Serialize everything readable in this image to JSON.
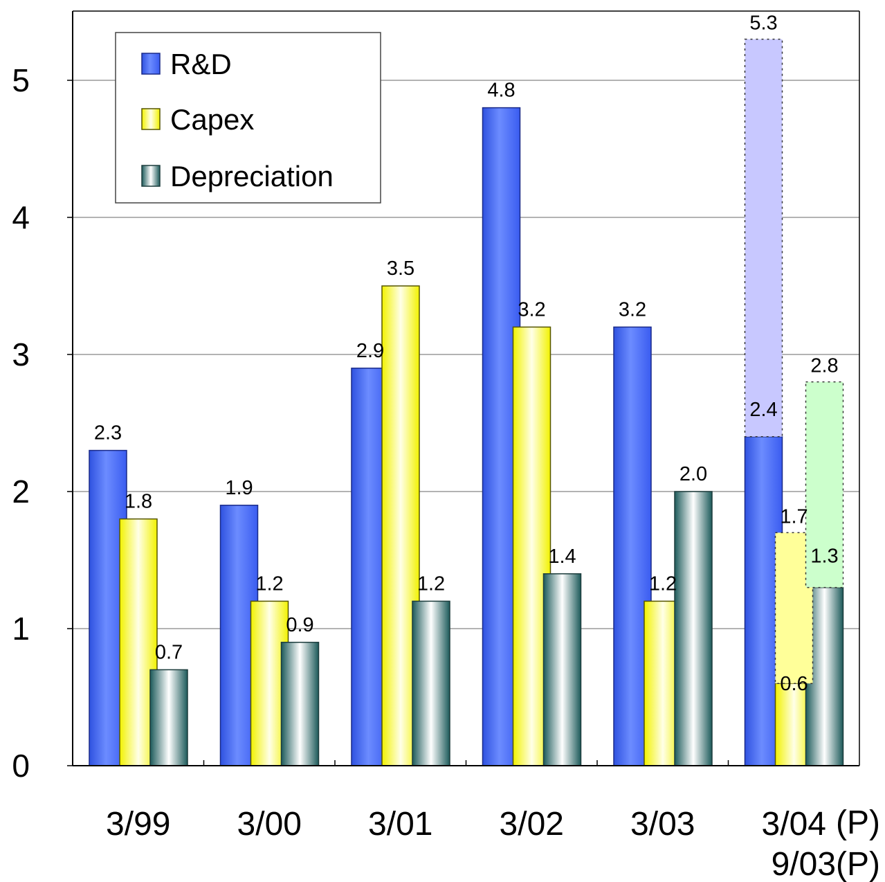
{
  "chart_data": {
    "type": "bar",
    "categories": [
      "3/99",
      "3/00",
      "3/01",
      "3/02",
      "3/03",
      "3/04"
    ],
    "category_suffix": [
      "",
      "",
      "",
      "",
      "",
      "(P)"
    ],
    "category_second_line": [
      "",
      "",
      "",
      "",
      "",
      "9/03(P)"
    ],
    "ylim": [
      0,
      5.5
    ],
    "yticks": [
      "0",
      "1",
      "2",
      "3",
      "4",
      "5"
    ],
    "grid": true,
    "legend_position": "top-left",
    "series": [
      {
        "name": "R&D",
        "values": [
          2.3,
          1.9,
          2.9,
          4.8,
          3.2,
          2.4
        ],
        "labels": [
          "2.3",
          "1.9",
          "2.9",
          "4.8",
          "3.2",
          "2.4"
        ],
        "color": "#5b7bff"
      },
      {
        "name": "Capex",
        "values": [
          1.8,
          1.2,
          3.5,
          3.2,
          1.2,
          0.6
        ],
        "labels": [
          "1.8",
          "1.2",
          "3.5",
          "3.2",
          "1.2",
          "0.6"
        ],
        "color": "#ffff55"
      },
      {
        "name": "Depreciation",
        "values": [
          0.7,
          0.9,
          1.2,
          1.4,
          2.0,
          1.3
        ],
        "labels": [
          "0.7",
          "0.9",
          "1.2",
          "1.4",
          "2.0",
          "1.3"
        ],
        "color": "#2e7070"
      }
    ],
    "projection": {
      "category": "3/04",
      "series": [
        {
          "name": "R&D",
          "value": 5.3,
          "label": "5.3",
          "color": "#c8c8ff"
        },
        {
          "name": "Capex",
          "value": 1.7,
          "label": "1.7",
          "color": "#ffff99"
        },
        {
          "name": "Depreciation",
          "value": 2.8,
          "label": "2.8",
          "color": "#ccffcc"
        }
      ]
    }
  }
}
